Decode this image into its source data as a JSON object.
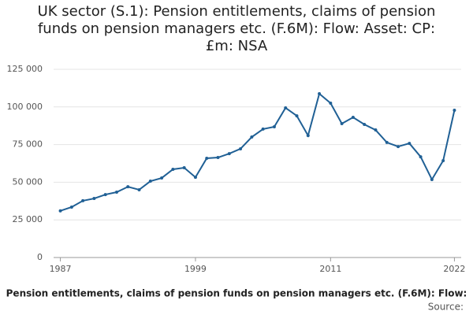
{
  "chart_data": {
    "type": "line",
    "title": "UK sector (S.1): Pension entitlements, claims of pension funds on pension managers etc. (F.6M): Flow: Asset: CP: £m: NSA",
    "x_label": "Pension entitlements, claims of pension funds on pension managers etc. (F.6M): Flow:",
    "source": "Source:",
    "x": [
      1987,
      1988,
      1989,
      1990,
      1991,
      1992,
      1993,
      1994,
      1995,
      1996,
      1997,
      1998,
      1999,
      2000,
      2001,
      2002,
      2003,
      2004,
      2005,
      2006,
      2007,
      2008,
      2009,
      2010,
      2011,
      2012,
      2013,
      2014,
      2015,
      2016,
      2017,
      2018,
      2019,
      2020,
      2021,
      2022
    ],
    "series": [
      {
        "color": "#206095",
        "values": [
          31000,
          33500,
          37700,
          39200,
          41800,
          43400,
          47000,
          45000,
          50700,
          52800,
          58600,
          59600,
          53300,
          65900,
          66400,
          69000,
          72200,
          80000,
          85300,
          86800,
          99400,
          94100,
          81000,
          108800,
          102500,
          88900,
          93100,
          88400,
          84700,
          76400,
          73700,
          75800,
          66900,
          51800,
          64300,
          97800
        ]
      }
    ],
    "xlim": [
      1986.4,
      2022.6
    ],
    "xticks": [
      1987,
      1999,
      2011,
      2022
    ],
    "ylim": [
      0,
      125000
    ],
    "yticks": [
      0,
      {
        "value": 25000,
        "label": "25 000"
      },
      {
        "value": 50000,
        "label": "50 000"
      },
      {
        "value": 75000,
        "label": "75 000"
      },
      {
        "value": 100000,
        "label": "100 000"
      },
      {
        "value": 125000,
        "label": "125 000"
      }
    ],
    "grid": true
  }
}
